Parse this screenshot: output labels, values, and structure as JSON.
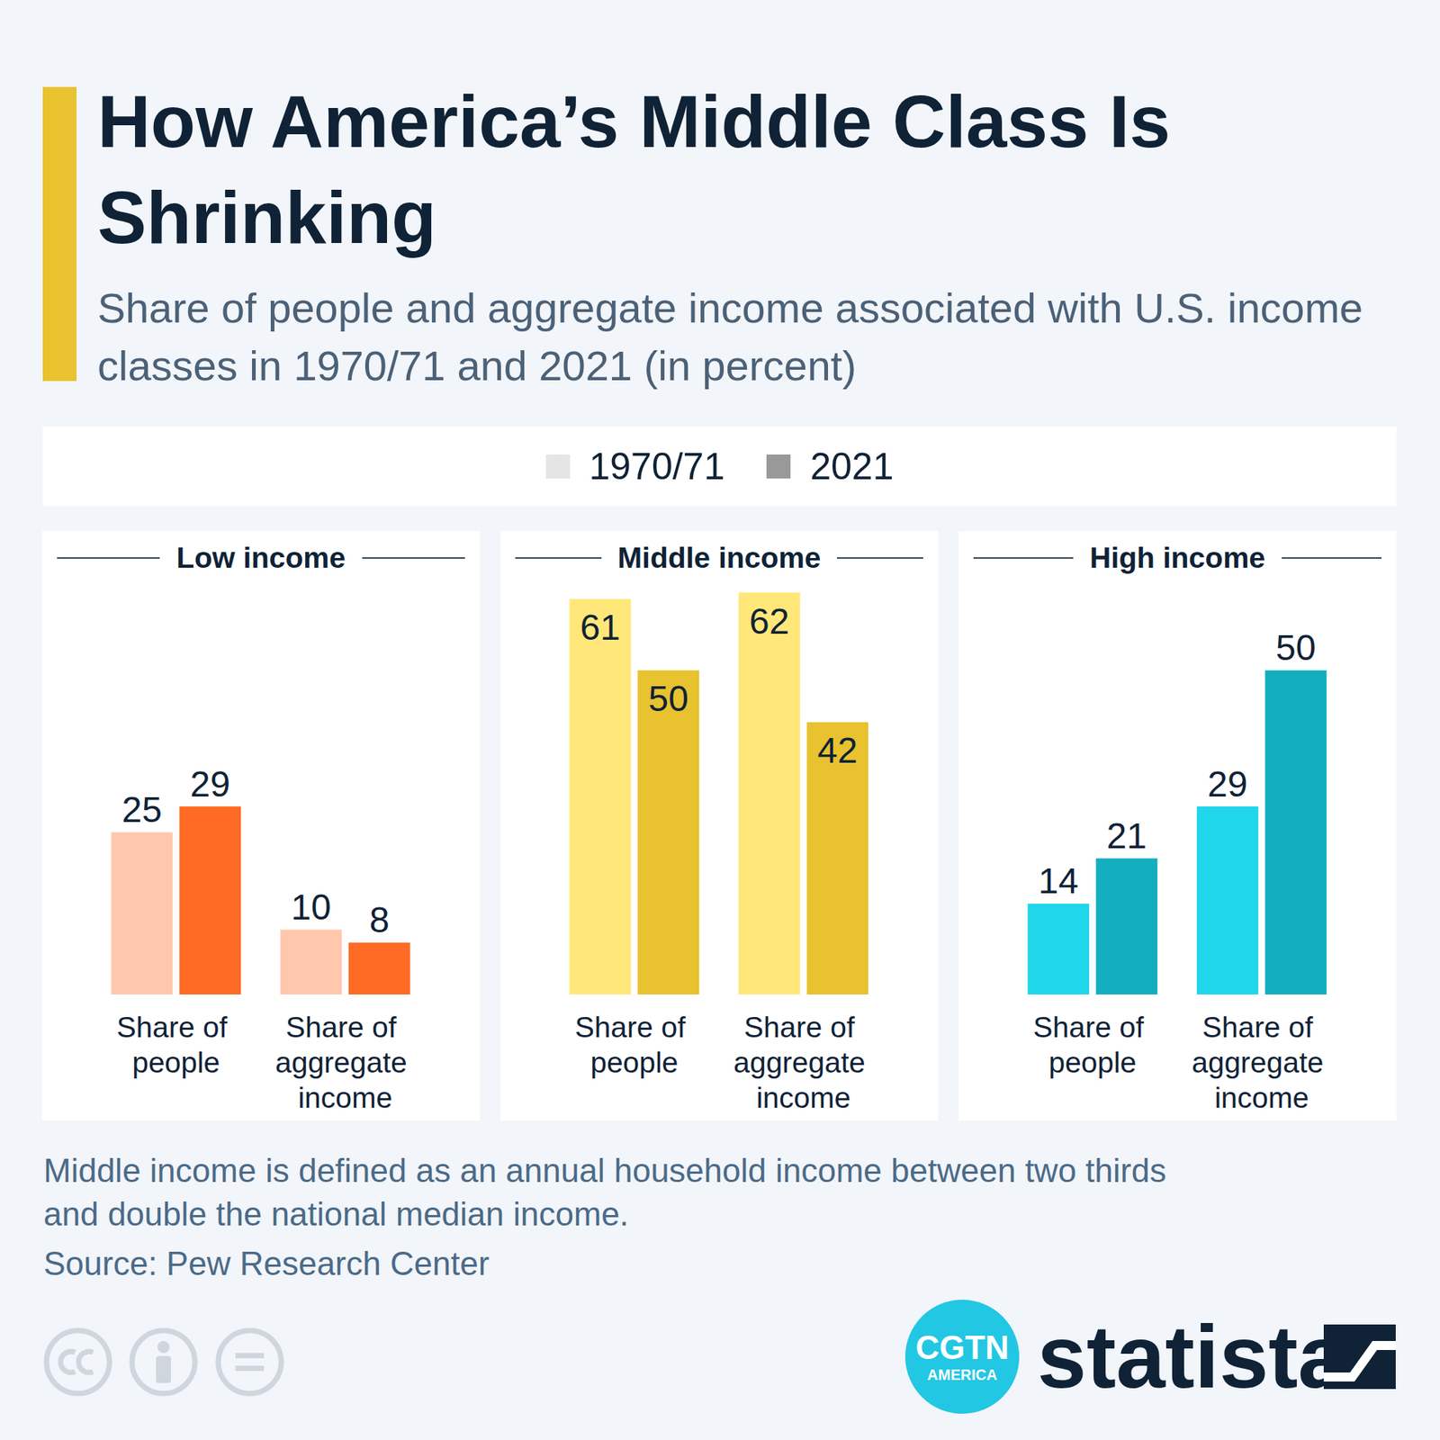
{
  "title": "How America’s Middle Class Is Shrinking",
  "subtitle": "Share of people and aggregate income associated with U.S. income classes in 1970/71 and 2021 (in percent)",
  "legend_items": [
    {
      "name": "1970/71",
      "color": "#e5e5e5"
    },
    {
      "name": "2021",
      "color": "#999999"
    }
  ],
  "note": "Middle income is defined as an annual household income between two thirds and double the national median income.",
  "source": "Source: Pew Research Center",
  "logo": [
    "CGTN",
    "AMERICA"
  ],
  "brand": "statista",
  "chart_data": [
    {
      "type": "bar",
      "title": "Low income",
      "categories": [
        "Share of people",
        "Share of aggregate income"
      ],
      "series": [
        {
          "name": "1970/71",
          "color": "#ffc8ad",
          "values": [
            25,
            10
          ]
        },
        {
          "name": "2021",
          "color": "#ff6b24",
          "values": [
            29,
            8
          ]
        }
      ],
      "ylim": [
        0,
        62
      ],
      "grid": false,
      "data_labels": true,
      "tick_labels": "x"
    },
    {
      "type": "bar",
      "title": "Middle income",
      "categories": [
        "Share of people",
        "Share of aggregate income"
      ],
      "series": [
        {
          "name": "1970/71",
          "color": "#ffe879",
          "values": [
            61,
            62
          ]
        },
        {
          "name": "2021",
          "color": "#e8c22f",
          "values": [
            50,
            42
          ]
        }
      ],
      "ylim": [
        0,
        62
      ],
      "grid": false,
      "data_labels": true,
      "tick_labels": "x"
    },
    {
      "type": "bar",
      "title": "High income",
      "categories": [
        "Share of people",
        "Share of aggregate income"
      ],
      "series": [
        {
          "name": "1970/71",
          "color": "#1fd6ea",
          "values": [
            14,
            29
          ]
        },
        {
          "name": "2021",
          "color": "#13aec0",
          "values": [
            21,
            50
          ]
        }
      ],
      "ylim": [
        0,
        62
      ],
      "grid": false,
      "data_labels": true,
      "tick_labels": "x"
    }
  ]
}
